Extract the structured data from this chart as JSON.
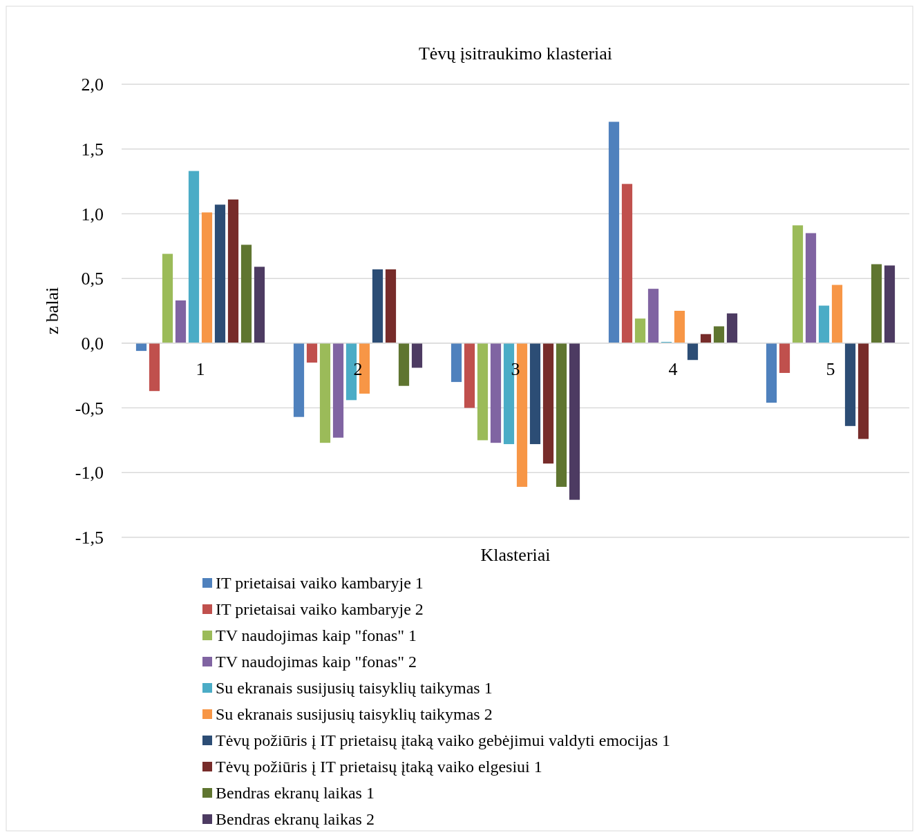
{
  "chart_data": {
    "type": "bar",
    "title": "Tėvų įsitraukimo klasteriai",
    "xlabel": "Klasteriai",
    "ylabel": "z balai",
    "categories": [
      "1",
      "2",
      "3",
      "4",
      "5"
    ],
    "ylim": [
      -1.5,
      2
    ],
    "yticks": [
      {
        "value": -1.5,
        "label": "-1,5"
      },
      {
        "value": -1,
        "label": "-1,0"
      },
      {
        "value": -0.5,
        "label": "-0,5"
      },
      {
        "value": 0,
        "label": "0,0"
      },
      {
        "value": 0.5,
        "label": "0,5"
      },
      {
        "value": 1,
        "label": "1,0"
      },
      {
        "value": 1.5,
        "label": "1,5"
      },
      {
        "value": 2,
        "label": "2,0"
      }
    ],
    "grid": "y",
    "legend": "bottom",
    "series": [
      {
        "name": "IT prietaisai vaiko kambaryje 1",
        "color": "#4f81bd",
        "values": [
          -0.06,
          -0.57,
          -0.3,
          1.71,
          -0.46
        ]
      },
      {
        "name": "IT prietaisai vaiko kambaryje 2",
        "color": "#c0504d",
        "values": [
          -0.37,
          -0.15,
          -0.5,
          1.23,
          -0.23
        ]
      },
      {
        "name": "TV naudojimas kaip \"fonas\" 1",
        "color": "#9bbb59",
        "values": [
          0.69,
          -0.77,
          -0.75,
          0.19,
          0.91
        ]
      },
      {
        "name": "TV naudojimas kaip \"fonas\" 2",
        "color": "#8064a2",
        "values": [
          0.33,
          -0.73,
          -0.77,
          0.42,
          0.85
        ]
      },
      {
        "name": "Su ekranais susijusių taisyklių taikymas 1",
        "color": "#4bacc6",
        "values": [
          1.33,
          -0.44,
          -0.78,
          0.01,
          0.29
        ]
      },
      {
        "name": "Su ekranais susijusių taisyklių taikymas 2",
        "color": "#f79646",
        "values": [
          1.01,
          -0.39,
          -1.11,
          0.25,
          0.45
        ]
      },
      {
        "name": "Tėvų požiūris į IT prietaisų įtaką vaiko gebėjimui valdyti emocijas 1",
        "color": "#2c4d75",
        "values": [
          1.07,
          0.57,
          -0.78,
          -0.13,
          -0.64
        ]
      },
      {
        "name": "Tėvų požiūris į IT prietaisų įtaką vaiko elgesiui 1",
        "color": "#772c2a",
        "values": [
          1.11,
          0.57,
          -0.93,
          0.07,
          -0.74
        ]
      },
      {
        "name": "Bendras ekranų laikas 1",
        "color": "#5f7530",
        "values": [
          0.76,
          -0.33,
          -1.11,
          0.13,
          0.61
        ]
      },
      {
        "name": "Bendras ekranų laikas 2",
        "color": "#4d3b62",
        "values": [
          0.59,
          -0.19,
          -1.21,
          0.23,
          0.6
        ]
      }
    ]
  }
}
